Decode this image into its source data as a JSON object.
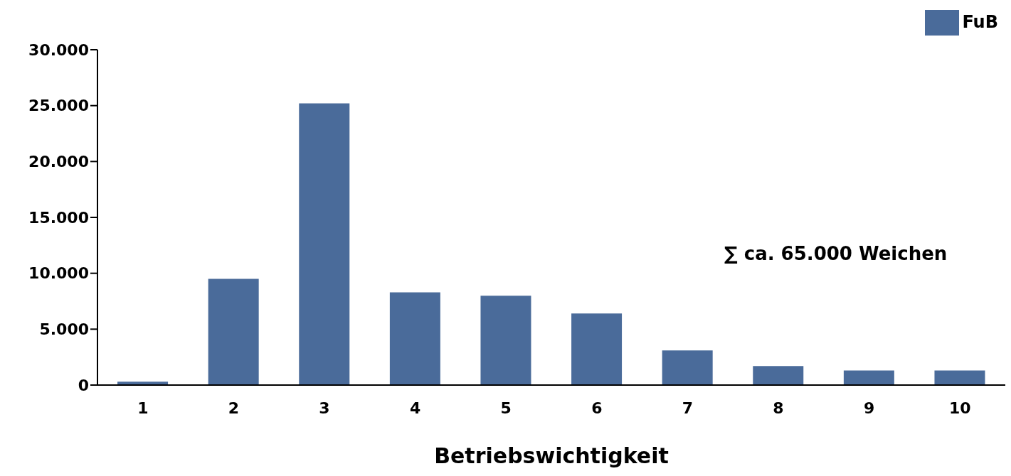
{
  "chart_data": {
    "type": "bar",
    "xlabel": "Betriebswichtigkeit",
    "categories": [
      "1",
      "2",
      "3",
      "4",
      "5",
      "6",
      "7",
      "8",
      "9",
      "10"
    ],
    "series": [
      {
        "name": "FuB",
        "color": "#4a6b9a",
        "values": [
          300,
          9500,
          25200,
          8300,
          8000,
          6400,
          3100,
          1700,
          1300,
          1300
        ]
      }
    ],
    "ylim": [
      0,
      30000
    ],
    "yticks": [
      {
        "value": 0,
        "label": "0"
      },
      {
        "value": 5000,
        "label": "5.000"
      },
      {
        "value": 10000,
        "label": "10.000"
      },
      {
        "value": 15000,
        "label": "15.000"
      },
      {
        "value": 20000,
        "label": "20.000"
      },
      {
        "value": 25000,
        "label": "25.000"
      },
      {
        "value": 30000,
        "label": "30.000"
      }
    ],
    "annotations": [
      "∑ ca. 65.000 Weichen"
    ],
    "legend": "top right",
    "grid": false
  }
}
